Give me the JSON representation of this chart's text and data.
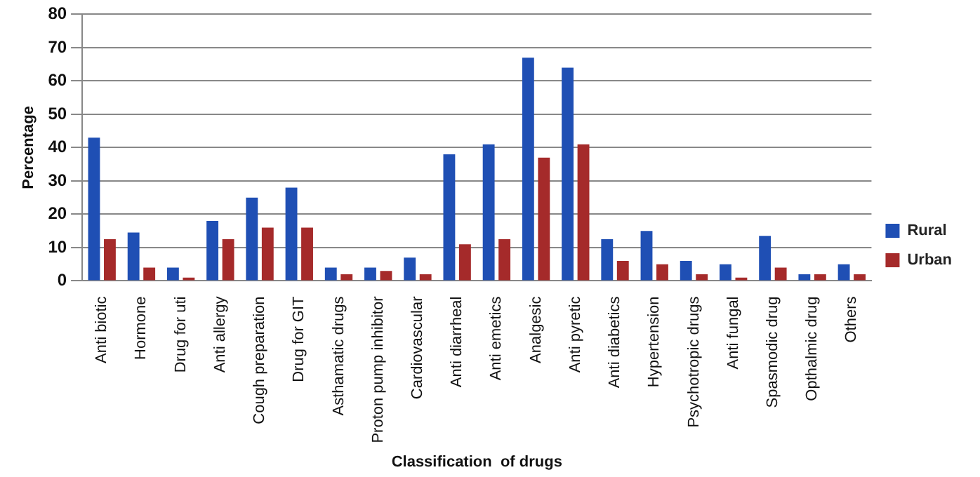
{
  "chart_data": {
    "type": "bar",
    "xlabel": "Classification  of drugs",
    "ylabel": "Percentage",
    "categories": [
      "Anti biotic",
      "Hormone",
      "Drug for uti",
      "Anti allergy",
      "Cough preparation",
      "Drug for GIT",
      "Asthamatic drugs",
      "Proton pump inhibitor",
      "Cardiovascular",
      "Anti diarrheal",
      "Anti emetics",
      "Analgesic",
      "Anti pyretic",
      "Anti diabetics",
      "Hypertension",
      "Psychotropic drugs",
      "Anti fungal",
      "Spasmodic drug",
      "Opthalmic drug",
      "Others"
    ],
    "series": [
      {
        "name": "Rural",
        "color": "#1f4fb4",
        "values": [
          43,
          14.5,
          4,
          18,
          25,
          28,
          4,
          4,
          7,
          38,
          41,
          67,
          64,
          12.5,
          15,
          6,
          5,
          13.5,
          2,
          5
        ]
      },
      {
        "name": "Urban",
        "color": "#a52a2a",
        "values": [
          12.5,
          4,
          1,
          12.5,
          16,
          16,
          2,
          3,
          2,
          11,
          12.5,
          37,
          41,
          6,
          5,
          2,
          1,
          4,
          2,
          2
        ]
      }
    ],
    "ylim": [
      0,
      80
    ],
    "yticks": [
      0,
      10,
      20,
      30,
      40,
      50,
      60,
      70,
      80
    ],
    "grid": "y",
    "legend": "right"
  }
}
